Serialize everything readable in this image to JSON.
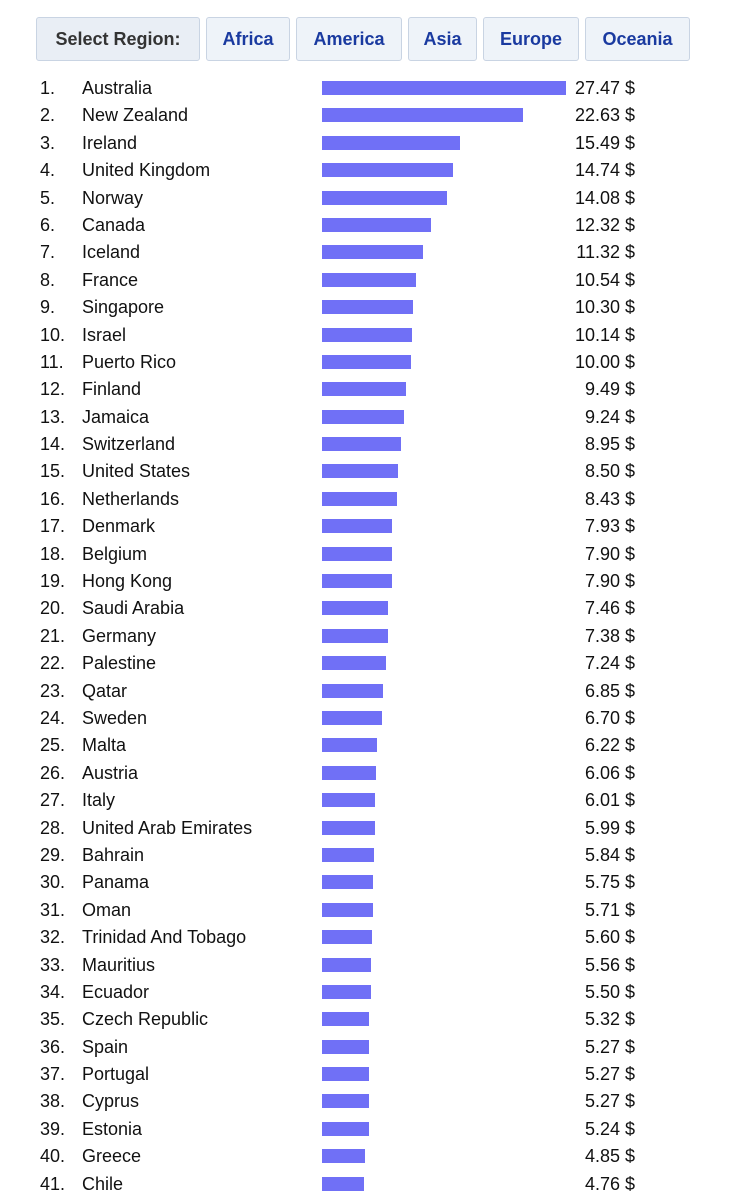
{
  "region_selector": {
    "label": "Select Region:",
    "options": [
      "Africa",
      "America",
      "Asia",
      "Europe",
      "Oceania"
    ]
  },
  "bar_color": "#7070f6",
  "max_value": 27.47,
  "ranking": [
    {
      "rank": "1.",
      "country": "Australia",
      "value": 27.47,
      "label": "27.47 $"
    },
    {
      "rank": "2.",
      "country": "New Zealand",
      "value": 22.63,
      "label": "22.63 $"
    },
    {
      "rank": "3.",
      "country": "Ireland",
      "value": 15.49,
      "label": "15.49 $"
    },
    {
      "rank": "4.",
      "country": "United Kingdom",
      "value": 14.74,
      "label": "14.74 $"
    },
    {
      "rank": "5.",
      "country": "Norway",
      "value": 14.08,
      "label": "14.08 $"
    },
    {
      "rank": "6.",
      "country": "Canada",
      "value": 12.32,
      "label": "12.32 $"
    },
    {
      "rank": "7.",
      "country": "Iceland",
      "value": 11.32,
      "label": "11.32 $"
    },
    {
      "rank": "8.",
      "country": "France",
      "value": 10.54,
      "label": "10.54 $"
    },
    {
      "rank": "9.",
      "country": "Singapore",
      "value": 10.3,
      "label": "10.30 $"
    },
    {
      "rank": "10.",
      "country": "Israel",
      "value": 10.14,
      "label": "10.14 $"
    },
    {
      "rank": "11.",
      "country": "Puerto Rico",
      "value": 10.0,
      "label": "10.00 $"
    },
    {
      "rank": "12.",
      "country": "Finland",
      "value": 9.49,
      "label": "9.49 $"
    },
    {
      "rank": "13.",
      "country": "Jamaica",
      "value": 9.24,
      "label": "9.24 $"
    },
    {
      "rank": "14.",
      "country": "Switzerland",
      "value": 8.95,
      "label": "8.95 $"
    },
    {
      "rank": "15.",
      "country": "United States",
      "value": 8.5,
      "label": "8.50 $"
    },
    {
      "rank": "16.",
      "country": "Netherlands",
      "value": 8.43,
      "label": "8.43 $"
    },
    {
      "rank": "17.",
      "country": "Denmark",
      "value": 7.93,
      "label": "7.93 $"
    },
    {
      "rank": "18.",
      "country": "Belgium",
      "value": 7.9,
      "label": "7.90 $"
    },
    {
      "rank": "19.",
      "country": "Hong Kong",
      "value": 7.9,
      "label": "7.90 $"
    },
    {
      "rank": "20.",
      "country": "Saudi Arabia",
      "value": 7.46,
      "label": "7.46 $"
    },
    {
      "rank": "21.",
      "country": "Germany",
      "value": 7.38,
      "label": "7.38 $"
    },
    {
      "rank": "22.",
      "country": "Palestine",
      "value": 7.24,
      "label": "7.24 $"
    },
    {
      "rank": "23.",
      "country": "Qatar",
      "value": 6.85,
      "label": "6.85 $"
    },
    {
      "rank": "24.",
      "country": "Sweden",
      "value": 6.7,
      "label": "6.70 $"
    },
    {
      "rank": "25.",
      "country": "Malta",
      "value": 6.22,
      "label": "6.22 $"
    },
    {
      "rank": "26.",
      "country": "Austria",
      "value": 6.06,
      "label": "6.06 $"
    },
    {
      "rank": "27.",
      "country": "Italy",
      "value": 6.01,
      "label": "6.01 $"
    },
    {
      "rank": "28.",
      "country": "United Arab Emirates",
      "value": 5.99,
      "label": "5.99 $"
    },
    {
      "rank": "29.",
      "country": "Bahrain",
      "value": 5.84,
      "label": "5.84 $"
    },
    {
      "rank": "30.",
      "country": "Panama",
      "value": 5.75,
      "label": "5.75 $"
    },
    {
      "rank": "31.",
      "country": "Oman",
      "value": 5.71,
      "label": "5.71 $"
    },
    {
      "rank": "32.",
      "country": "Trinidad And Tobago",
      "value": 5.6,
      "label": "5.60 $"
    },
    {
      "rank": "33.",
      "country": "Mauritius",
      "value": 5.56,
      "label": "5.56 $"
    },
    {
      "rank": "34.",
      "country": "Ecuador",
      "value": 5.5,
      "label": "5.50 $"
    },
    {
      "rank": "35.",
      "country": "Czech Republic",
      "value": 5.32,
      "label": "5.32 $"
    },
    {
      "rank": "36.",
      "country": "Spain",
      "value": 5.27,
      "label": "5.27 $"
    },
    {
      "rank": "37.",
      "country": "Portugal",
      "value": 5.27,
      "label": "5.27 $"
    },
    {
      "rank": "38.",
      "country": "Cyprus",
      "value": 5.27,
      "label": "5.27 $"
    },
    {
      "rank": "39.",
      "country": "Estonia",
      "value": 5.24,
      "label": "5.24 $"
    },
    {
      "rank": "40.",
      "country": "Greece",
      "value": 4.85,
      "label": "4.85 $"
    },
    {
      "rank": "41.",
      "country": "Chile",
      "value": 4.76,
      "label": "4.76 $"
    }
  ]
}
